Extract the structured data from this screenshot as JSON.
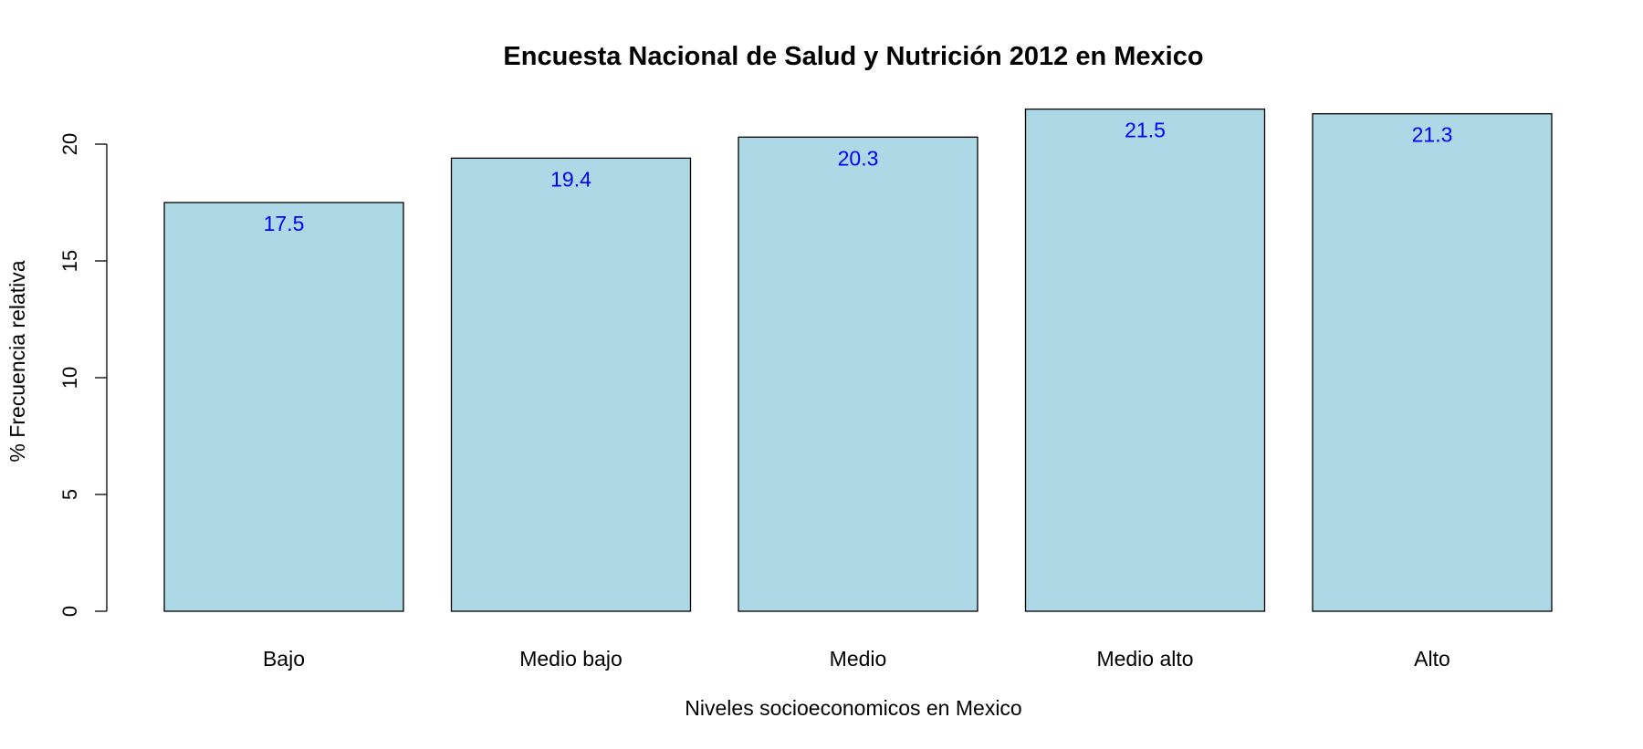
{
  "chart_data": {
    "type": "bar",
    "title": "Encuesta Nacional de Salud y Nutrición 2012 en Mexico",
    "xlabel": "Niveles socioeconomicos en Mexico",
    "ylabel": "% Frecuencia relativa",
    "categories": [
      "Bajo",
      "Medio bajo",
      "Medio",
      "Medio alto",
      "Alto"
    ],
    "values": [
      17.5,
      19.4,
      20.3,
      21.5,
      21.3
    ],
    "data_labels": [
      "17.5",
      "19.4",
      "20.3",
      "21.5",
      "21.3"
    ],
    "ylim": [
      0,
      20
    ],
    "yticks": [
      0,
      5,
      10,
      15,
      20
    ],
    "grid": false,
    "legend": "none",
    "colors": {
      "bar_fill": "#add8e6",
      "bar_border": "#000000",
      "data_label": "#0000ff"
    }
  }
}
